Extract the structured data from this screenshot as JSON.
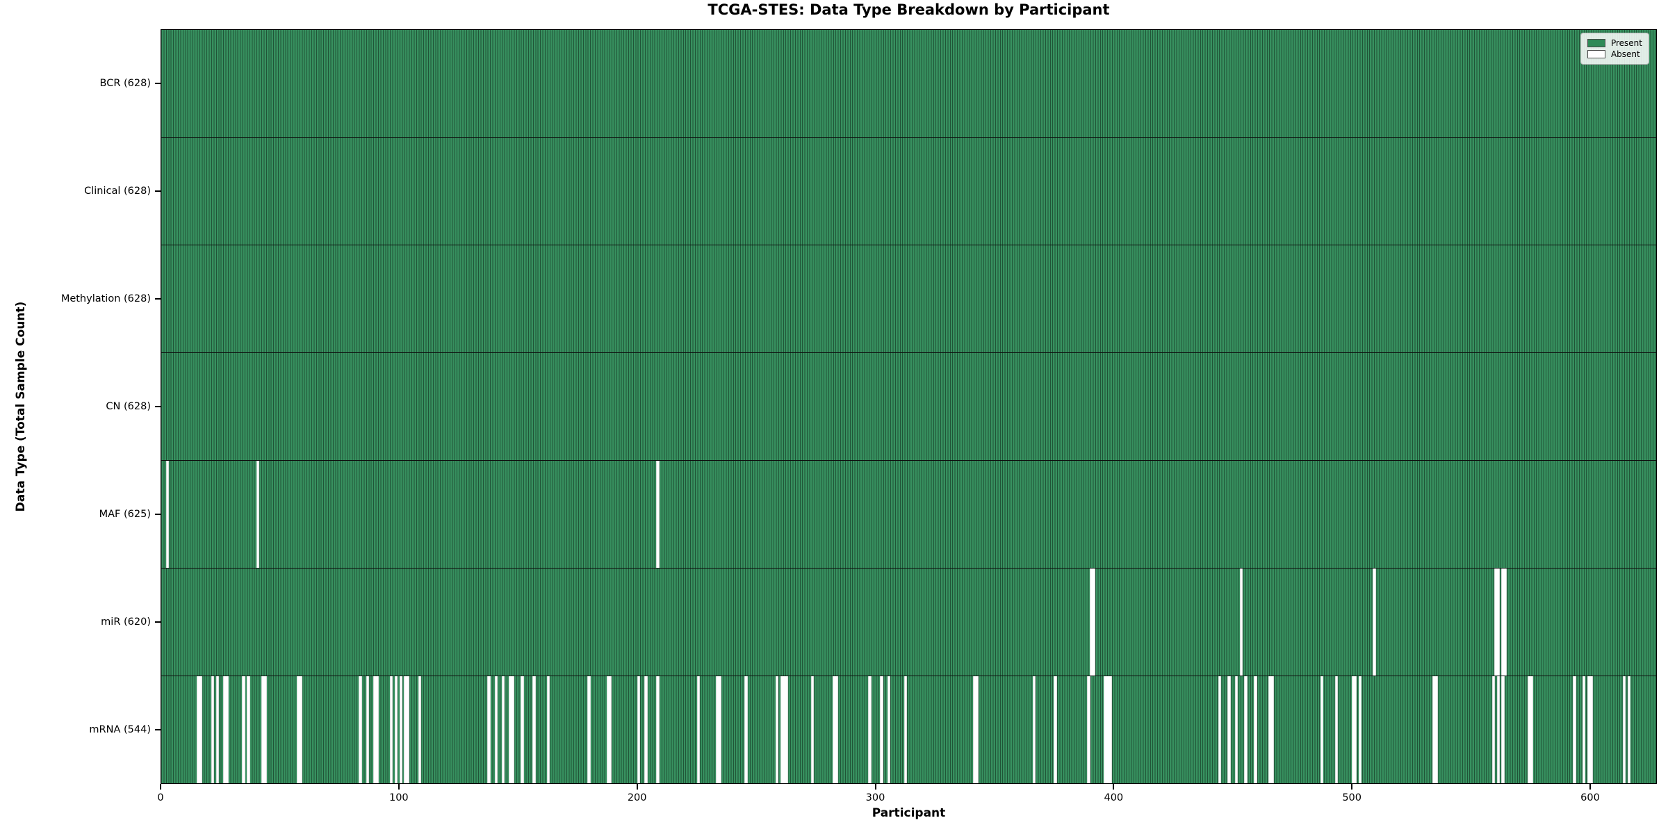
{
  "chart_data": {
    "type": "heatmap",
    "title": "TCGA-STES: Data Type Breakdown by Participant",
    "xlabel": "Participant",
    "ylabel": "Data Type (Total Sample Count)",
    "x_ticks": [
      0,
      100,
      200,
      300,
      400,
      500,
      600
    ],
    "xlim": [
      0,
      628
    ],
    "n_participants": 628,
    "grid": false,
    "legend": {
      "position": "top-right",
      "items": [
        {
          "label": "Present",
          "color": "#2e8b57"
        },
        {
          "label": "Absent",
          "color": "#ffffff"
        }
      ]
    },
    "colors": {
      "present": "#2e8b57",
      "absent": "#ffffff",
      "bar_edge": "#1e5c38",
      "spine": "#000000"
    },
    "rows": [
      {
        "name": "BCR",
        "label": "BCR (628)",
        "present_count": 628,
        "absent_participants": []
      },
      {
        "name": "Clinical",
        "label": "Clinical (628)",
        "present_count": 628,
        "absent_participants": []
      },
      {
        "name": "Methylation",
        "label": "Methylation (628)",
        "present_count": 628,
        "absent_participants": []
      },
      {
        "name": "CN",
        "label": "CN (628)",
        "present_count": 628,
        "absent_participants": []
      },
      {
        "name": "MAF",
        "label": "MAF (625)",
        "present_count": 625,
        "absent_participants": [
          2,
          40,
          208
        ]
      },
      {
        "name": "miR",
        "label": "miR (620)",
        "present_count": 620,
        "absent_participants": [
          390,
          391,
          453,
          509,
          560,
          561,
          563,
          564
        ]
      },
      {
        "name": "mRNA",
        "label": "mRNA (544)",
        "present_count": 544,
        "absent_participants": [
          15,
          16,
          21,
          23,
          26,
          27,
          34,
          36,
          42,
          43,
          57,
          58,
          83,
          86,
          89,
          90,
          96,
          98,
          100,
          102,
          103,
          108,
          137,
          140,
          143,
          146,
          147,
          151,
          156,
          162,
          179,
          187,
          188,
          200,
          203,
          208,
          225,
          233,
          234,
          245,
          258,
          260,
          261,
          262,
          273,
          282,
          283,
          297,
          302,
          305,
          312,
          341,
          342,
          366,
          375,
          389,
          396,
          397,
          398,
          444,
          448,
          451,
          455,
          459,
          465,
          466,
          487,
          493,
          500,
          501,
          503,
          534,
          535,
          559,
          561,
          563,
          574,
          575,
          593,
          597,
          599,
          600,
          614,
          616
        ]
      }
    ]
  }
}
